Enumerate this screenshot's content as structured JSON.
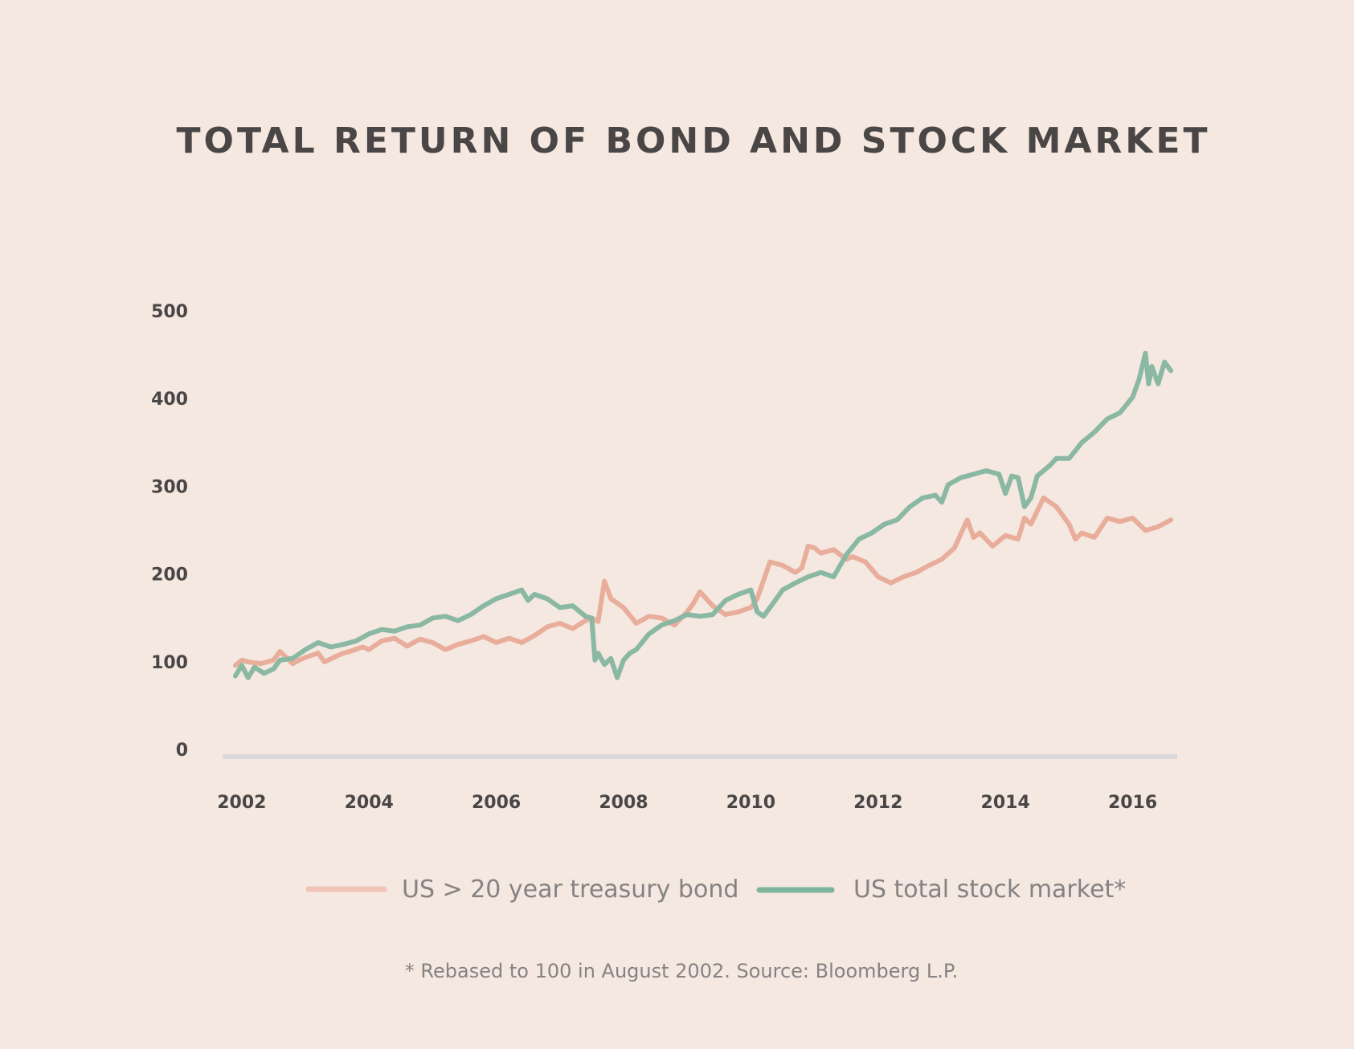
{
  "chart_data": {
    "type": "line",
    "title": "TOTAL RETURN OF BOND AND STOCK MARKET",
    "xlabel": "",
    "ylabel": "",
    "xlim": [
      2001.8,
      2016.7
    ],
    "ylim": [
      0,
      500
    ],
    "x_ticks": [
      2002,
      2004,
      2006,
      2008,
      2010,
      2012,
      2014,
      2016
    ],
    "x_tick_labels": [
      "2002",
      "2004",
      "2006",
      "2008",
      "2010",
      "2012",
      "2014",
      "2016"
    ],
    "y_ticks": [
      0,
      100,
      200,
      300,
      400,
      500
    ],
    "y_tick_labels": [
      "0",
      "100",
      "200",
      "300",
      "400",
      "500"
    ],
    "legend_position": "bottom-center",
    "footnote": "* Rebased to 100 in August 2002. Source: Bloomberg L.P.",
    "colors": {
      "background": "#f4e8e1",
      "baseline": "#d9d8d9",
      "text": "#4a4645",
      "muted_text": "#868282"
    },
    "series": [
      {
        "name": "US > 20 year treasury bond",
        "color": "#e8ae9b",
        "legend_color": "#f0c4b6",
        "x": [
          2001.9,
          2002.0,
          2002.1,
          2002.3,
          2002.5,
          2002.6,
          2002.8,
          2002.9,
          2003.0,
          2003.2,
          2003.3,
          2003.5,
          2003.6,
          2003.7,
          2003.9,
          2004.0,
          2004.2,
          2004.4,
          2004.6,
          2004.8,
          2005.0,
          2005.2,
          2005.4,
          2005.6,
          2005.8,
          2006.0,
          2006.2,
          2006.4,
          2006.6,
          2006.8,
          2007.0,
          2007.2,
          2007.4,
          2007.5,
          2007.6,
          2007.7,
          2007.8,
          2008.0,
          2008.2,
          2008.4,
          2008.6,
          2008.8,
          2009.0,
          2009.1,
          2009.2,
          2009.4,
          2009.6,
          2009.8,
          2010.0,
          2010.1,
          2010.3,
          2010.5,
          2010.7,
          2010.8,
          2010.9,
          2011.0,
          2011.1,
          2011.3,
          2011.5,
          2011.6,
          2011.8,
          2012.0,
          2012.2,
          2012.4,
          2012.6,
          2012.8,
          2013.0,
          2013.2,
          2013.4,
          2013.5,
          2013.6,
          2013.8,
          2014.0,
          2014.2,
          2014.3,
          2014.4,
          2014.6,
          2014.7,
          2014.8,
          2015.0,
          2015.1,
          2015.2,
          2015.4,
          2015.6,
          2015.8,
          2016.0,
          2016.2,
          2016.4,
          2016.6
        ],
        "values": [
          104,
          110,
          108,
          106,
          110,
          120,
          106,
          110,
          113,
          118,
          108,
          115,
          118,
          120,
          125,
          122,
          132,
          135,
          126,
          134,
          130,
          122,
          128,
          132,
          137,
          130,
          135,
          130,
          138,
          148,
          152,
          146,
          155,
          158,
          154,
          200,
          180,
          170,
          152,
          160,
          158,
          150,
          165,
          175,
          188,
          172,
          162,
          165,
          170,
          180,
          222,
          218,
          210,
          215,
          240,
          238,
          232,
          236,
          225,
          228,
          222,
          205,
          198,
          205,
          210,
          218,
          225,
          238,
          270,
          250,
          255,
          240,
          252,
          248,
          272,
          265,
          295,
          290,
          285,
          265,
          248,
          255,
          250,
          272,
          268,
          272,
          258,
          262,
          270
        ]
      },
      {
        "name": "US total stock market*",
        "color": "#8ab8a3",
        "legend_color": "#7fb59c",
        "x": [
          2001.9,
          2002.0,
          2002.1,
          2002.2,
          2002.35,
          2002.5,
          2002.6,
          2002.8,
          2003.0,
          2003.2,
          2003.4,
          2003.6,
          2003.8,
          2004.0,
          2004.2,
          2004.4,
          2004.6,
          2004.8,
          2005.0,
          2005.2,
          2005.4,
          2005.6,
          2005.8,
          2006.0,
          2006.2,
          2006.4,
          2006.5,
          2006.6,
          2006.8,
          2007.0,
          2007.2,
          2007.4,
          2007.5,
          2007.55,
          2007.6,
          2007.7,
          2007.8,
          2007.9,
          2008.0,
          2008.1,
          2008.2,
          2008.4,
          2008.6,
          2008.8,
          2009.0,
          2009.2,
          2009.4,
          2009.6,
          2009.8,
          2010.0,
          2010.1,
          2010.2,
          2010.3,
          2010.5,
          2010.7,
          2010.9,
          2011.1,
          2011.3,
          2011.5,
          2011.7,
          2011.9,
          2012.1,
          2012.3,
          2012.5,
          2012.7,
          2012.9,
          2013.0,
          2013.1,
          2013.3,
          2013.5,
          2013.7,
          2013.9,
          2014.0,
          2014.1,
          2014.2,
          2014.3,
          2014.4,
          2014.5,
          2014.6,
          2014.7,
          2014.8,
          2015.0,
          2015.2,
          2015.4,
          2015.6,
          2015.8,
          2016.0,
          2016.1,
          2016.2,
          2016.25,
          2016.3,
          2016.4,
          2016.5,
          2016.6
        ],
        "values": [
          92,
          104,
          90,
          102,
          95,
          100,
          110,
          112,
          122,
          130,
          125,
          128,
          132,
          140,
          145,
          143,
          148,
          150,
          158,
          160,
          155,
          162,
          172,
          180,
          185,
          190,
          178,
          185,
          180,
          170,
          172,
          160,
          158,
          110,
          118,
          105,
          112,
          90,
          110,
          118,
          122,
          140,
          150,
          155,
          162,
          160,
          162,
          178,
          185,
          190,
          165,
          160,
          170,
          190,
          198,
          205,
          210,
          205,
          230,
          248,
          255,
          265,
          270,
          285,
          295,
          298,
          290,
          310,
          318,
          322,
          326,
          322,
          300,
          320,
          318,
          285,
          295,
          320,
          326,
          332,
          340,
          340,
          358,
          370,
          385,
          392,
          410,
          430,
          460,
          425,
          445,
          425,
          450,
          440
        ]
      }
    ]
  }
}
